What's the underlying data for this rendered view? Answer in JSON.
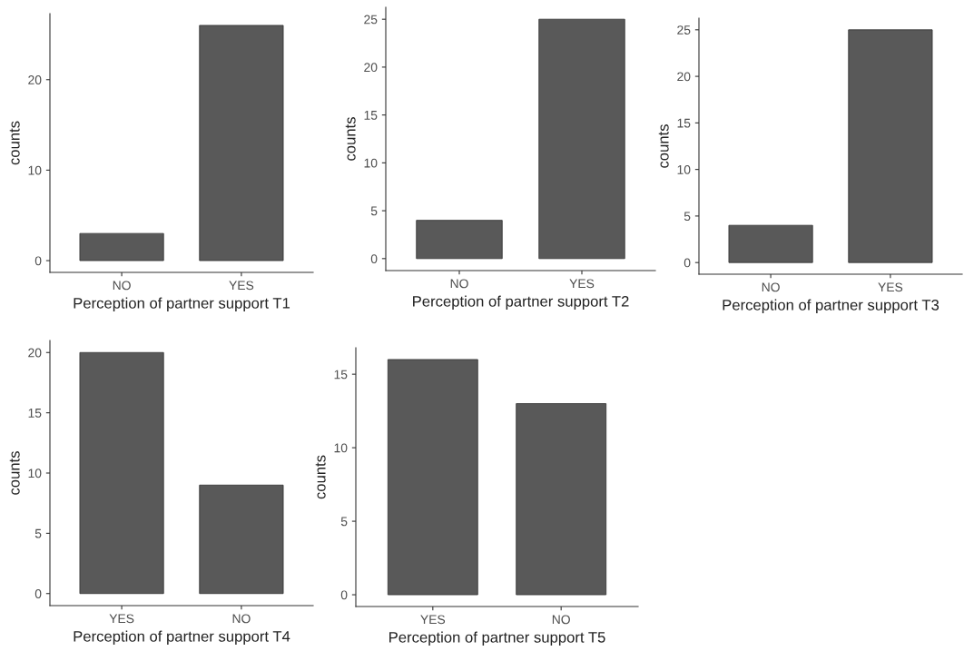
{
  "chart_data": [
    {
      "type": "bar",
      "categories": [
        "NO",
        "YES"
      ],
      "values": [
        3,
        26
      ],
      "color": "#595959",
      "xlabel": "Perception of partner support T1",
      "ylabel": "counts",
      "ylim": [
        -1.3,
        27.3
      ],
      "yticks": [
        0,
        10,
        20
      ],
      "grid": false,
      "legend": false
    },
    {
      "type": "bar",
      "categories": [
        "NO",
        "YES"
      ],
      "values": [
        4,
        25
      ],
      "color": "#595959",
      "xlabel": "Perception of partner support T2",
      "ylabel": "counts",
      "ylim": [
        -1.25,
        26.25
      ],
      "yticks": [
        0,
        5,
        10,
        15,
        20,
        25
      ],
      "grid": false,
      "legend": false
    },
    {
      "type": "bar",
      "categories": [
        "NO",
        "YES"
      ],
      "values": [
        4,
        25
      ],
      "color": "#595959",
      "xlabel": "Perception of partner support T3",
      "ylabel": "counts",
      "ylim": [
        -1.25,
        26.25
      ],
      "yticks": [
        0,
        5,
        10,
        15,
        20,
        25
      ],
      "grid": false,
      "legend": false
    },
    {
      "type": "bar",
      "categories": [
        "YES",
        "NO"
      ],
      "values": [
        20,
        9
      ],
      "color": "#595959",
      "xlabel": "Perception of partner support T4",
      "ylabel": "counts",
      "ylim": [
        -1,
        21
      ],
      "yticks": [
        0,
        5,
        10,
        15,
        20
      ],
      "grid": false,
      "legend": false
    },
    {
      "type": "bar",
      "categories": [
        "YES",
        "NO"
      ],
      "values": [
        16,
        13
      ],
      "color": "#595959",
      "xlabel": "Perception of partner support T5",
      "ylabel": "counts",
      "ylim": [
        -0.8,
        16.8
      ],
      "yticks": [
        0,
        5,
        10,
        15
      ],
      "grid": false,
      "legend": false
    }
  ]
}
